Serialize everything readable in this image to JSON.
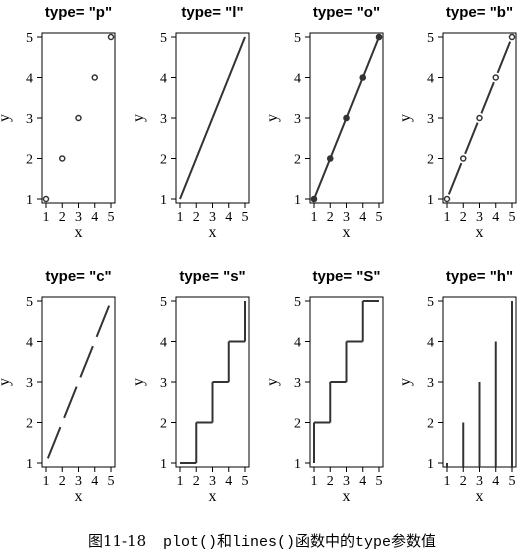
{
  "chart_data": [
    {
      "type": "scatter",
      "title": "type= \"p\"",
      "plot_type": "p",
      "xlabel": "x",
      "ylabel": "y",
      "x": [
        1,
        2,
        3,
        4,
        5
      ],
      "y": [
        1,
        2,
        3,
        4,
        5
      ],
      "xlim": [
        1,
        5
      ],
      "ylim": [
        1,
        5
      ],
      "xticks": [
        "1",
        "2",
        "3",
        "4",
        "5"
      ],
      "yticks": [
        "1",
        "2",
        "3",
        "4",
        "5"
      ],
      "grid": false
    },
    {
      "type": "line",
      "title": "type= \"l\"",
      "plot_type": "l",
      "xlabel": "x",
      "ylabel": "y",
      "x": [
        1,
        2,
        3,
        4,
        5
      ],
      "y": [
        1,
        2,
        3,
        4,
        5
      ],
      "xlim": [
        1,
        5
      ],
      "ylim": [
        1,
        5
      ],
      "xticks": [
        "1",
        "2",
        "3",
        "4",
        "5"
      ],
      "yticks": [
        "1",
        "2",
        "3",
        "4",
        "5"
      ],
      "grid": false
    },
    {
      "type": "line",
      "title": "type= \"o\"",
      "plot_type": "o",
      "xlabel": "x",
      "ylabel": "y",
      "x": [
        1,
        2,
        3,
        4,
        5
      ],
      "y": [
        1,
        2,
        3,
        4,
        5
      ],
      "xlim": [
        1,
        5
      ],
      "ylim": [
        1,
        5
      ],
      "xticks": [
        "1",
        "2",
        "3",
        "4",
        "5"
      ],
      "yticks": [
        "1",
        "2",
        "3",
        "4",
        "5"
      ],
      "grid": false
    },
    {
      "type": "line",
      "title": "type= \"b\"",
      "plot_type": "b",
      "xlabel": "x",
      "ylabel": "y",
      "x": [
        1,
        2,
        3,
        4,
        5
      ],
      "y": [
        1,
        2,
        3,
        4,
        5
      ],
      "xlim": [
        1,
        5
      ],
      "ylim": [
        1,
        5
      ],
      "xticks": [
        "1",
        "2",
        "3",
        "4",
        "5"
      ],
      "yticks": [
        "1",
        "2",
        "3",
        "4",
        "5"
      ],
      "grid": false
    },
    {
      "type": "line",
      "title": "type= \"c\"",
      "plot_type": "c",
      "xlabel": "x",
      "ylabel": "y",
      "x": [
        1,
        2,
        3,
        4,
        5
      ],
      "y": [
        1,
        2,
        3,
        4,
        5
      ],
      "xlim": [
        1,
        5
      ],
      "ylim": [
        1,
        5
      ],
      "xticks": [
        "1",
        "2",
        "3",
        "4",
        "5"
      ],
      "yticks": [
        "1",
        "2",
        "3",
        "4",
        "5"
      ],
      "grid": false
    },
    {
      "type": "line",
      "title": "type= \"s\"",
      "plot_type": "s",
      "xlabel": "x",
      "ylabel": "y",
      "x": [
        1,
        2,
        3,
        4,
        5
      ],
      "y": [
        1,
        2,
        3,
        4,
        5
      ],
      "xlim": [
        1,
        5
      ],
      "ylim": [
        1,
        5
      ],
      "xticks": [
        "1",
        "2",
        "3",
        "4",
        "5"
      ],
      "yticks": [
        "1",
        "2",
        "3",
        "4",
        "5"
      ],
      "grid": false
    },
    {
      "type": "line",
      "title": "type= \"S\"",
      "plot_type": "S",
      "xlabel": "x",
      "ylabel": "y",
      "x": [
        1,
        2,
        3,
        4,
        5
      ],
      "y": [
        1,
        2,
        3,
        4,
        5
      ],
      "xlim": [
        1,
        5
      ],
      "ylim": [
        1,
        5
      ],
      "xticks": [
        "1",
        "2",
        "3",
        "4",
        "5"
      ],
      "yticks": [
        "1",
        "2",
        "3",
        "4",
        "5"
      ],
      "grid": false
    },
    {
      "type": "bar",
      "title": "type= \"h\"",
      "plot_type": "h",
      "xlabel": "x",
      "ylabel": "y",
      "x": [
        1,
        2,
        3,
        4,
        5
      ],
      "y": [
        1,
        2,
        3,
        4,
        5
      ],
      "xlim": [
        1,
        5
      ],
      "ylim": [
        1,
        5
      ],
      "xticks": [
        "1",
        "2",
        "3",
        "4",
        "5"
      ],
      "yticks": [
        "1",
        "2",
        "3",
        "4",
        "5"
      ],
      "grid": false
    }
  ],
  "caption": {
    "number": "图11-18",
    "code1": "plot()",
    "word1": "和",
    "code2": "lines()",
    "word2": "函数中的",
    "code3": "type",
    "word3": "参数值"
  },
  "colors": {
    "line": "#333333",
    "axis": "#000000"
  }
}
